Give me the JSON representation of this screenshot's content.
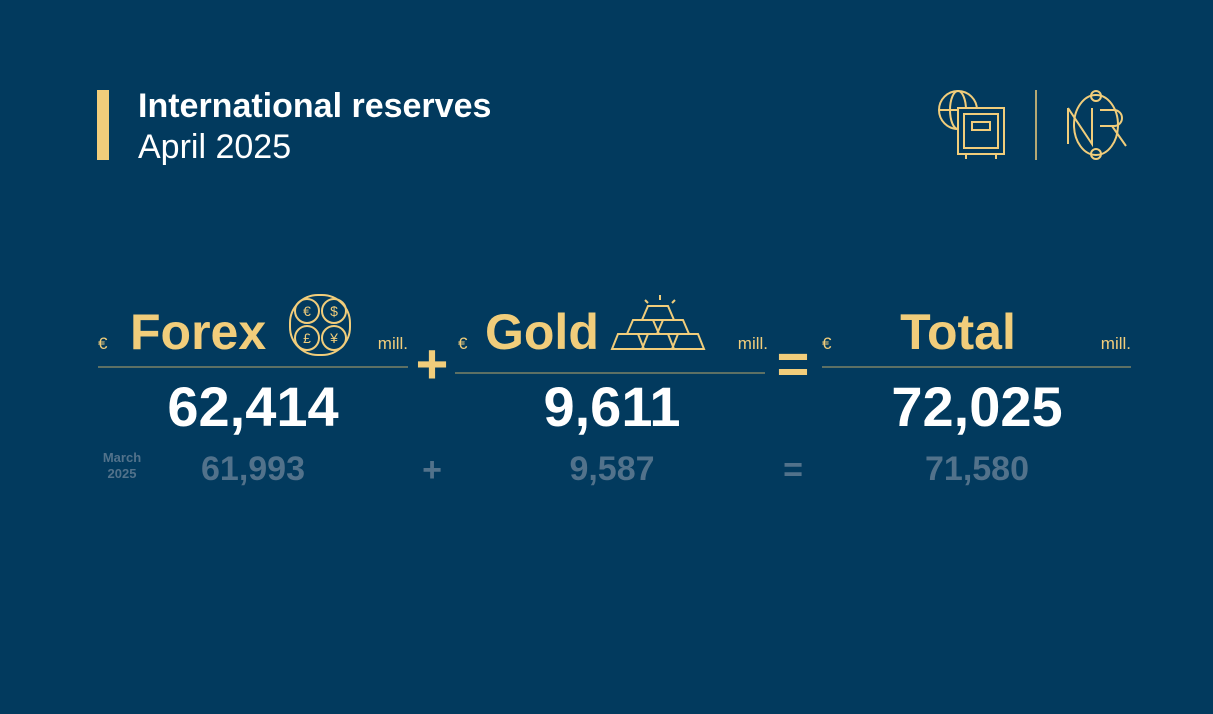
{
  "header": {
    "title": "International reserves",
    "subtitle": "April 2025"
  },
  "columns": [
    {
      "currency": "€",
      "label": "Forex",
      "unit": "mill.",
      "value": "62,414",
      "previous": "61,993"
    },
    {
      "currency": "€",
      "label": "Gold",
      "unit": "mill.",
      "value": "9,611",
      "previous": "9,587"
    },
    {
      "currency": "€",
      "label": "Total",
      "unit": "mill.",
      "value": "72,025",
      "previous": "71,580"
    }
  ],
  "operators": [
    "+",
    "="
  ],
  "previous_period": [
    "March",
    "2025"
  ]
}
